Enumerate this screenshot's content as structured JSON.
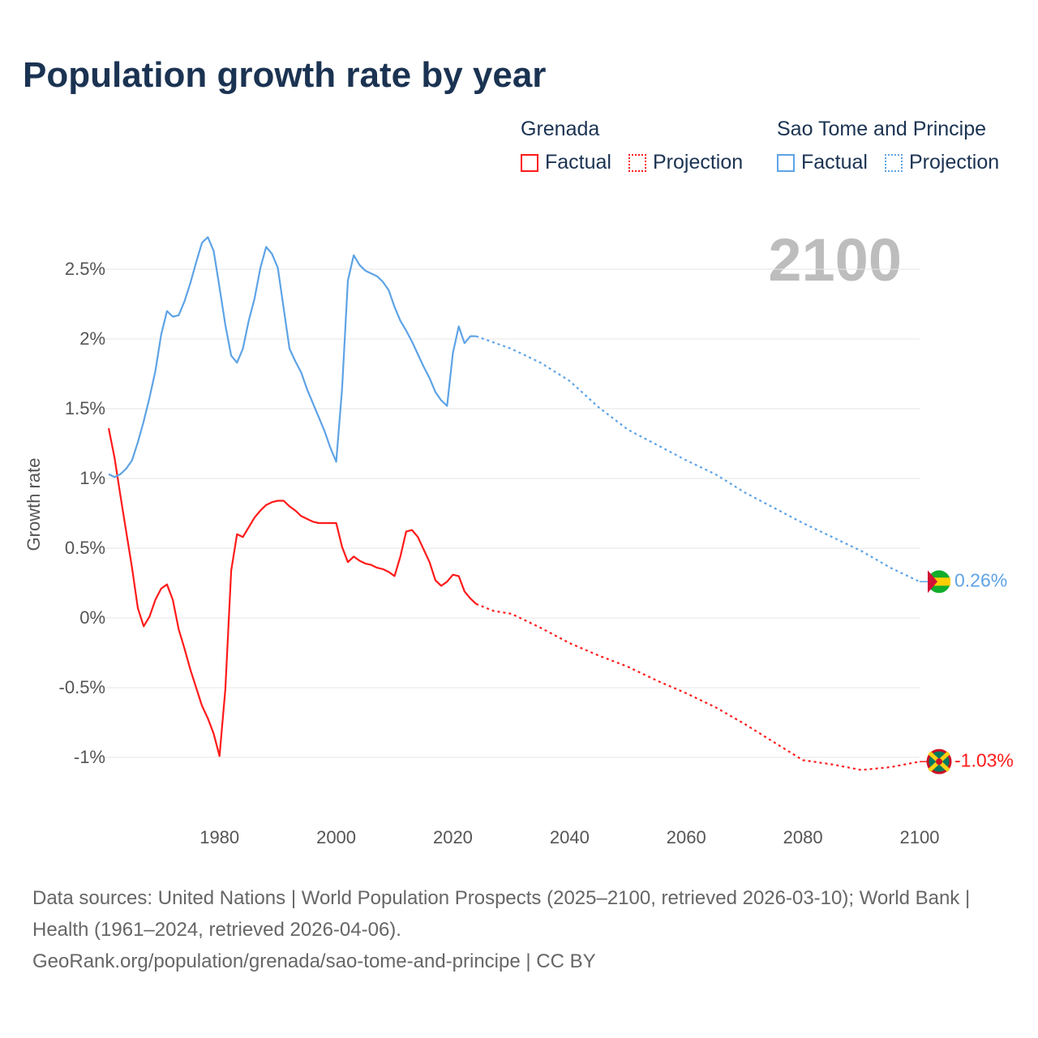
{
  "title": "Population growth rate by year",
  "legend": {
    "groups": [
      {
        "name": "Grenada",
        "factual": "Factual",
        "projection": "Projection",
        "color": "#ff1a1a"
      },
      {
        "name": "Sao Tome and Principe",
        "factual": "Factual",
        "projection": "Projection",
        "color": "#5ea3e6"
      }
    ]
  },
  "current_year": "2100",
  "end_labels": {
    "grenada": "-1.03%",
    "sao_tome": "0.26%"
  },
  "footer": {
    "sources": "Data sources: United Nations | World Population Prospects (2025–2100, retrieved 2026-03-10); World Bank | Health (1961–2024, retrieved 2026-04-06).",
    "link": "GeoRank.org/population/grenada/sao-tome-and-principe | CC BY"
  },
  "chart_data": {
    "type": "line",
    "title": "Population growth rate by year",
    "xlabel": "",
    "ylabel": "Growth rate",
    "xlim": [
      1961,
      2100
    ],
    "ylim": [
      -1.3,
      2.85
    ],
    "x_ticks": [
      "1980",
      "2000",
      "2020",
      "2040",
      "2060",
      "2080",
      "2100"
    ],
    "y_ticks": [
      {
        "v": 2.5,
        "label": "2.5%"
      },
      {
        "v": 2,
        "label": "2%"
      },
      {
        "v": 1.5,
        "label": "1.5%"
      },
      {
        "v": 1,
        "label": "1%"
      },
      {
        "v": 0.5,
        "label": "0.5%"
      },
      {
        "v": 0,
        "label": "0%"
      },
      {
        "v": -0.5,
        "label": "-0.5%"
      },
      {
        "v": -1,
        "label": "-1%"
      }
    ],
    "grid": true,
    "series": [
      {
        "name": "Grenada",
        "color": "#ff1a1a",
        "factual": {
          "x_start": 1961,
          "values": [
            1.36,
            1.15,
            0.88,
            0.62,
            0.36,
            0.07,
            -0.06,
            0.01,
            0.13,
            0.21,
            0.24,
            0.13,
            -0.08,
            -0.22,
            -0.37,
            -0.5,
            -0.63,
            -0.72,
            -0.83,
            -0.99,
            -0.51,
            0.34,
            0.6,
            0.58,
            0.65,
            0.72,
            0.77,
            0.81,
            0.83,
            0.84,
            0.84,
            0.8,
            0.77,
            0.73,
            0.71,
            0.69,
            0.68,
            0.68,
            0.68,
            0.68,
            0.51,
            0.4,
            0.44,
            0.41,
            0.39,
            0.38,
            0.36,
            0.35,
            0.33,
            0.3,
            0.44,
            0.62,
            0.63,
            0.58,
            0.49,
            0.4,
            0.27,
            0.23,
            0.26,
            0.31,
            0.3,
            0.19,
            0.14,
            0.1
          ]
        },
        "projection": {
          "x": [
            2024,
            2027,
            2030,
            2035,
            2040,
            2045,
            2050,
            2055,
            2060,
            2065,
            2070,
            2075,
            2080,
            2085,
            2090,
            2095,
            2100
          ],
          "values": [
            0.1,
            0.05,
            0.03,
            -0.07,
            -0.18,
            -0.27,
            -0.35,
            -0.45,
            -0.54,
            -0.64,
            -0.76,
            -0.89,
            -1.02,
            -1.05,
            -1.09,
            -1.07,
            -1.03
          ]
        }
      },
      {
        "name": "Sao Tome and Principe",
        "color": "#5ea3e6",
        "factual": {
          "x_start": 1961,
          "values": [
            1.03,
            1.01,
            1.03,
            1.07,
            1.13,
            1.26,
            1.41,
            1.58,
            1.77,
            2.03,
            2.2,
            2.16,
            2.17,
            2.27,
            2.4,
            2.55,
            2.69,
            2.73,
            2.63,
            2.37,
            2.1,
            1.88,
            1.83,
            1.93,
            2.13,
            2.29,
            2.51,
            2.66,
            2.61,
            2.51,
            2.22,
            1.93,
            1.84,
            1.76,
            1.64,
            1.54,
            1.44,
            1.34,
            1.22,
            1.12,
            1.64,
            2.42,
            2.6,
            2.53,
            2.49,
            2.47,
            2.45,
            2.41,
            2.35,
            2.23,
            2.13,
            2.06,
            1.98,
            1.89,
            1.8,
            1.72,
            1.62,
            1.56,
            1.52,
            1.9,
            2.09,
            1.97,
            2.02,
            2.02
          ]
        },
        "projection": {
          "x": [
            2024,
            2030,
            2035,
            2040,
            2045,
            2050,
            2055,
            2060,
            2065,
            2070,
            2075,
            2080,
            2085,
            2090,
            2095,
            2100
          ],
          "values": [
            2.02,
            1.93,
            1.83,
            1.7,
            1.51,
            1.35,
            1.24,
            1.13,
            1.03,
            0.9,
            0.79,
            0.68,
            0.58,
            0.48,
            0.36,
            0.26
          ]
        }
      }
    ]
  }
}
